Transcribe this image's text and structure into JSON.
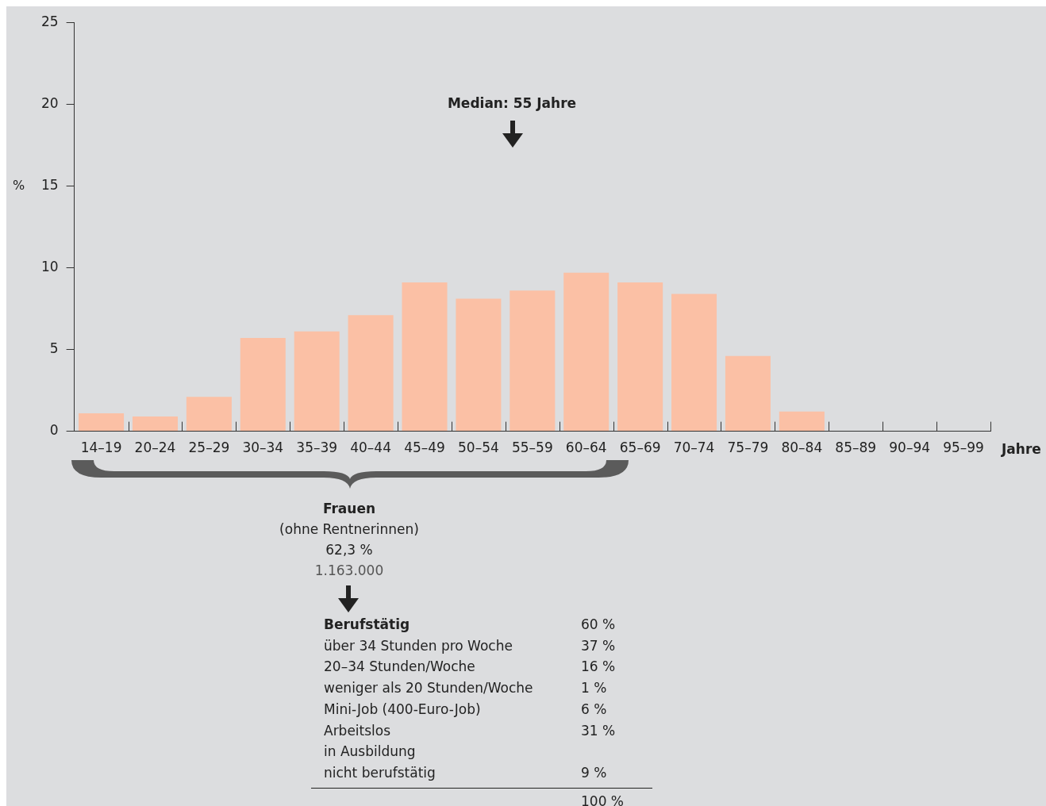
{
  "chart_data": {
    "type": "bar",
    "ylabel": "%",
    "xlabel": "Jahre",
    "categories": [
      "14–19",
      "20–24",
      "25–29",
      "30–34",
      "35–39",
      "40–44",
      "45–49",
      "50–54",
      "55–59",
      "60–64",
      "65–69",
      "70–74",
      "75–79",
      "80–84",
      "85–89",
      "90–94",
      "95–99"
    ],
    "values": [
      1.1,
      0.9,
      2.1,
      5.7,
      6.1,
      7.1,
      9.1,
      8.1,
      8.6,
      9.7,
      9.1,
      8.4,
      4.6,
      1.2,
      0,
      0,
      0
    ],
    "color": "#fbc0a5",
    "ylim": [
      0,
      25
    ],
    "yticks": [
      0,
      5,
      10,
      15,
      20,
      25
    ],
    "grid": false,
    "legend": false,
    "annotations": [
      "Median: 55 Jahre",
      "Frauen",
      "(ohne Rentnerinnen)",
      "62,3 %",
      "1.163.000",
      "Berufstätig",
      "60 %",
      "über 34 Stunden pro Woche",
      "37 %",
      "20–34 Stunden/Woche",
      "16 %",
      "weniger als 20 Stunden/Woche",
      "1 %",
      "Mini-Job (400-Euro-Job)",
      "6 %",
      "Arbeitslos\nin Ausbildung",
      "31 %",
      "nicht berufstätig",
      "9 %",
      "100 %"
    ]
  }
}
